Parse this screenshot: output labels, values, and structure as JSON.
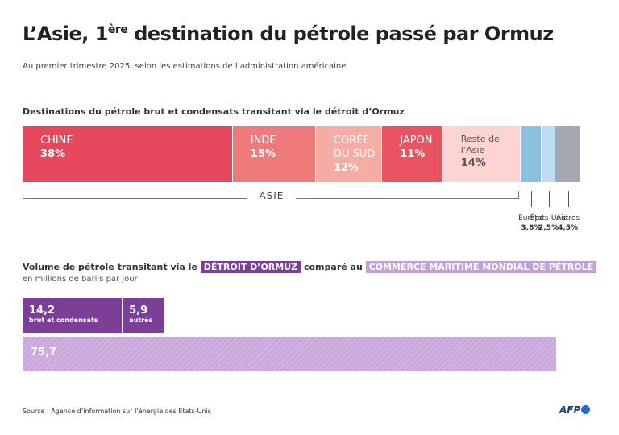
{
  "header": {
    "title_main": "L’Asie, 1",
    "title_sup": "ère",
    "title_rest": " destination du pétrole passé par Ormuz",
    "subtitle": "Au premier trimestre 2025, selon les estimations de l’administration américaine"
  },
  "chart_data": [
    {
      "type": "stacked-bar",
      "title": "Destinations du pétrole brut et condensats transitant via le détroit d’Ormuz",
      "categories": [
        "CHINE",
        "INDE",
        "CORÉE DU SUD",
        "JAPON",
        "Reste de l’Asie",
        "Europe",
        "États-Unis",
        "Autres"
      ],
      "values": [
        38,
        15,
        12,
        11,
        14,
        3.8,
        2.5,
        4.5
      ],
      "value_labels": [
        "38%",
        "15%",
        "12%",
        "11%",
        "14%",
        "3,8%",
        "2,5%",
        "4,5%"
      ],
      "colors": [
        "#e5475c",
        "#ef7a7c",
        "#f4aca4",
        "#e95362",
        "#fcd4d2",
        "#8dbfe0",
        "#bcdcf4",
        "#a4a8b0"
      ],
      "group_label": "ASIE"
    },
    {
      "type": "bar",
      "title_1": "Volume de pétrole transitant via le",
      "title_2": "DÉTROIT D’ORMUZ",
      "title_3": "comparé au",
      "title_4": "COMMERCE MARITIME MONDIAL DE PÉTROLE",
      "subtitle": "en millions de barils par jour",
      "series": [
        {
          "name": "brut et condensats",
          "color": "#7b3f98",
          "values": [
            14.2
          ],
          "value_labels": [
            "14,2"
          ]
        },
        {
          "name": "autres",
          "color": "#7b3f98",
          "values": [
            5.9
          ],
          "value_labels": [
            "5,9"
          ]
        },
        {
          "color": "#c9a6dc",
          "values": [
            75.7
          ],
          "value_labels": [
            "75,7"
          ]
        }
      ]
    }
  ],
  "footer": {
    "source": "Source : Agence d’information sur l’énergie des États-Unis",
    "logo": "AFP"
  }
}
